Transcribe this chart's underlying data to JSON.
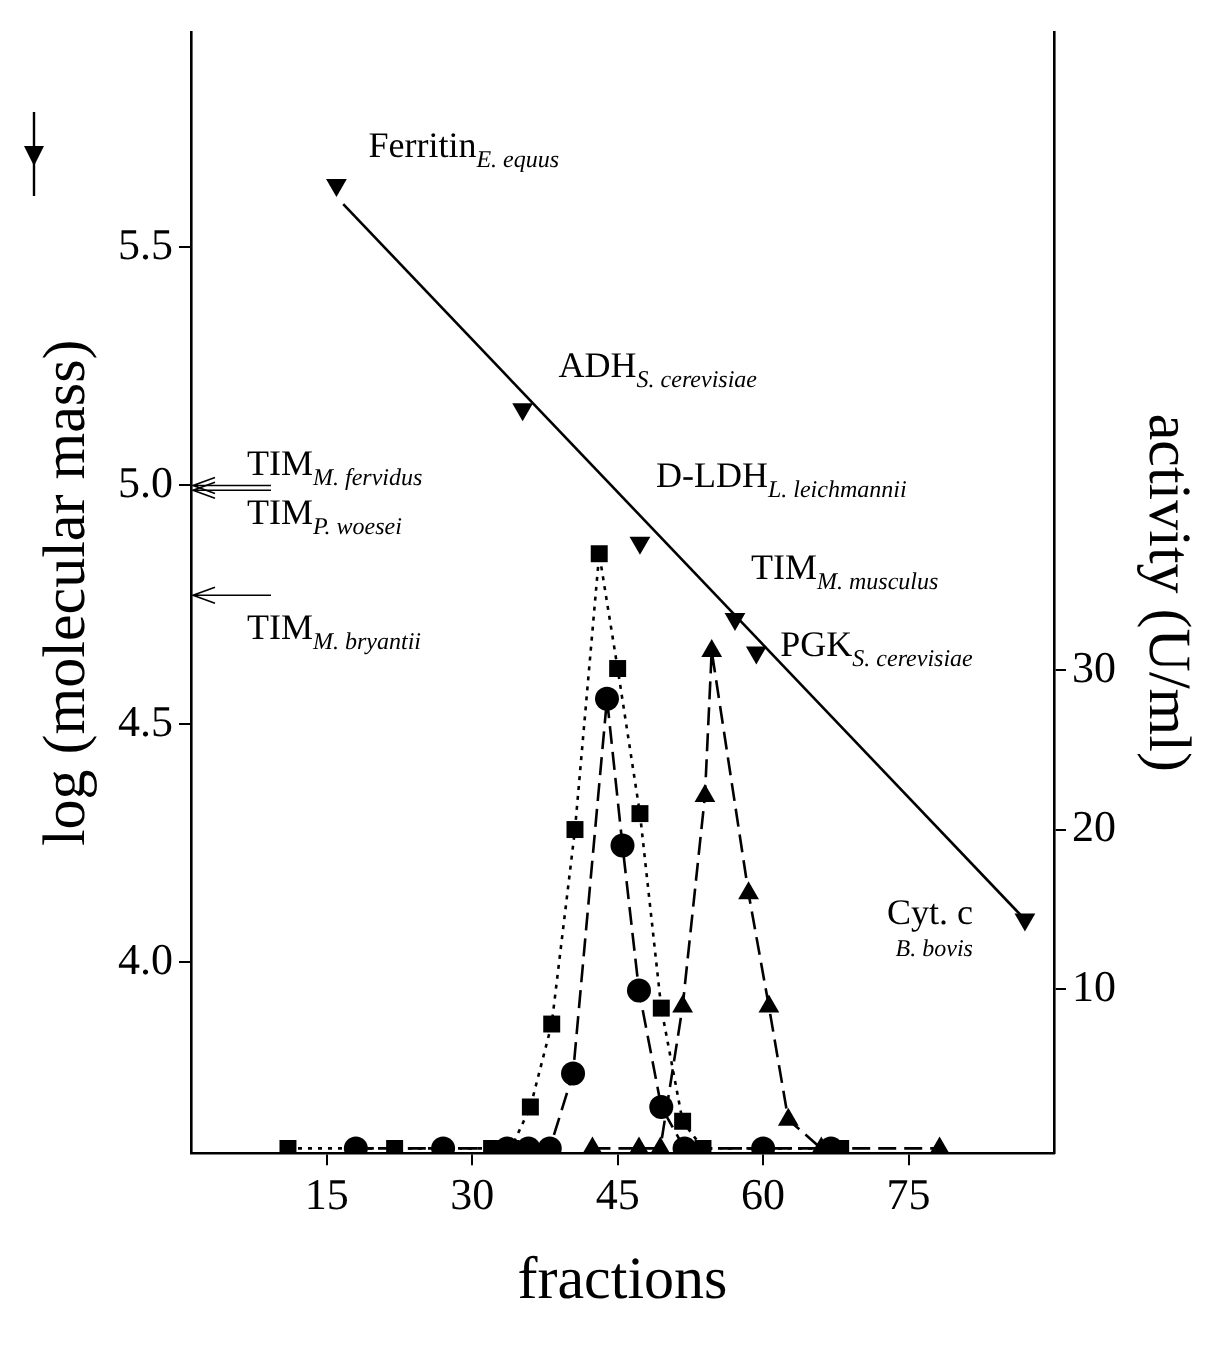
{
  "chart_data": {
    "type": "line",
    "xlabel": "fractions",
    "ylabel": "log (molecular mass)",
    "y2label": "activity (U/ml)",
    "xlim": [
      1,
      90
    ],
    "xticks": [
      15,
      30,
      45,
      60,
      75
    ],
    "ylim": [
      3.6,
      5.95
    ],
    "yticks": [
      {
        "value": 4,
        "label": "4.0"
      },
      4.5,
      {
        "value": 5,
        "label": "5.0"
      },
      5.5
    ],
    "y2lim": [
      -0.3,
      70
    ],
    "y2ticks": [
      10,
      20,
      30
    ],
    "series": [
      {
        "type": "scatter",
        "color": "#000000",
        "marker": "triangle",
        "x": [
          16,
          35.2,
          47.3,
          57.1,
          59.3,
          87
        ],
        "values": [
          5.63,
          5.16,
          4.88,
          4.72,
          4.65,
          4.09
        ]
      },
      {
        "color": "#000000",
        "marker": "none",
        "line_style": "solid",
        "x": [
          16.7,
          87
        ],
        "values": [
          5.59,
          4.09
        ]
      },
      {
        "axis": "y2",
        "color": "#000000",
        "marker": "square",
        "line_style": "dotted",
        "x": [
          11,
          22,
          32,
          34,
          36,
          38.2,
          40.6,
          43.1,
          45,
          47.3,
          49.5,
          51.7,
          53.8,
          68
        ],
        "values": [
          0,
          0,
          0,
          0,
          2.6,
          7.8,
          20,
          37.3,
          30.1,
          21,
          8.8,
          1.7,
          0,
          0
        ]
      },
      {
        "axis": "y2",
        "color": "#000000",
        "marker": "circle",
        "line_style": "dashed",
        "x": [
          18,
          27,
          33.6,
          35.8,
          38,
          40.4,
          43.9,
          45.5,
          47.2,
          49.5,
          51.9,
          60,
          67
        ],
        "values": [
          0,
          0,
          0,
          0,
          0,
          4.7,
          28.2,
          19,
          9.9,
          2.6,
          0,
          0,
          0
        ]
      },
      {
        "axis": "y2",
        "color": "#000000",
        "marker": "triangle",
        "line_style": "dashed",
        "x": [
          42.4,
          47.2,
          49.4,
          51.7,
          54,
          54.7,
          58.5,
          60.6,
          62.6,
          66,
          78.2
        ],
        "values": [
          0,
          0,
          0,
          8.9,
          22.1,
          31.2,
          16,
          8.9,
          1.8,
          0,
          0
        ]
      }
    ],
    "annotations": [
      {
        "text": "Ferritin$_{E. equus}$",
        "x": 16,
        "y": 5.63
      },
      {
        "text": "ADH$_{S. cerevisiae}$",
        "x": 35.2,
        "y": 5.16
      },
      {
        "text": "D-LDH$_{L. leichmannii}$",
        "x": 47.3,
        "y": 4.88
      },
      {
        "text": "TIM$_{M. musculus}$",
        "x": 57.1,
        "y": 4.72
      },
      {
        "text": "PGK$_{S. cerevisiae}$",
        "x": 59.3,
        "y": 4.65
      },
      {
        "text": "Cyt. c$_{B. bovis}$",
        "x": 87,
        "y": 4.09
      }
    ],
    "ref_lines": [
      {
        "axis": "y",
        "value": 5.0,
        "label": "TIM$_{M. fervidus}$"
      },
      {
        "axis": "y",
        "value": 4.99,
        "label": "TIM$_{P. woesei}$"
      },
      {
        "axis": "y",
        "value": 4.77,
        "label": "TIM$_{M. bryantii}$"
      }
    ],
    "grid": false,
    "legend": false
  }
}
